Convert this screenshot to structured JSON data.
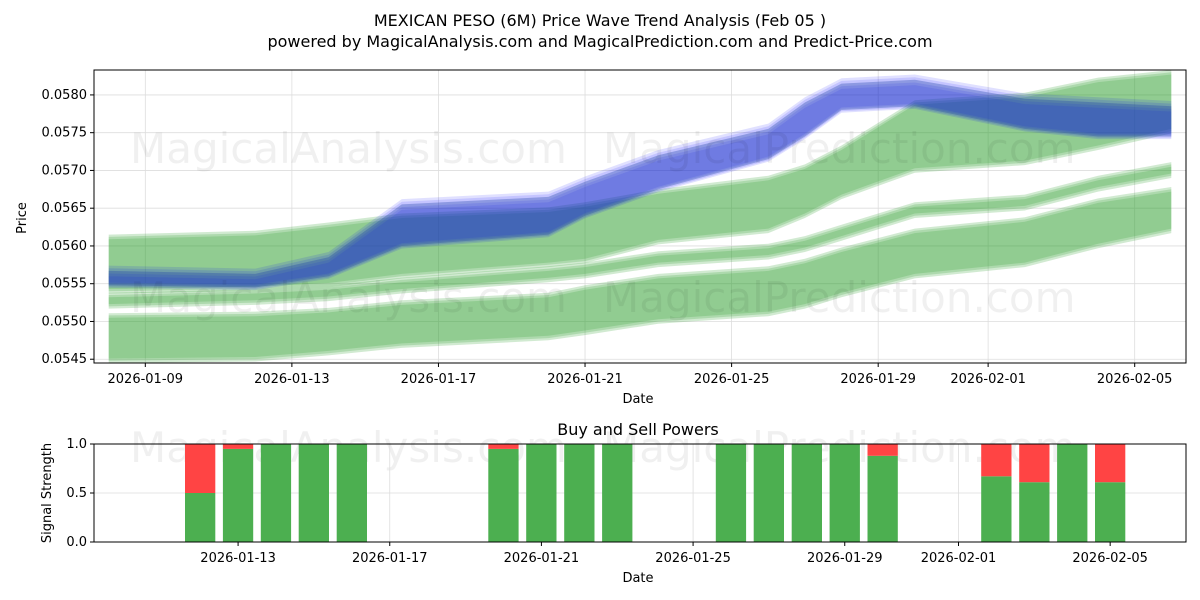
{
  "title_line1": "MEXICAN PESO (6M) Price Wave Trend Analysis (Feb 05 )",
  "title_line2": "powered by MagicalAnalysis.com and MagicalPrediction.com and Predict-Price.com",
  "watermarks": [
    "MagicalAnalysis.com",
    "MagicalPrediction.com"
  ],
  "colors": {
    "green_band": "#2ca02c",
    "blue_band": "#0000ff",
    "buy": "#4caf50",
    "sell": "#ff4444",
    "grid": "#dddddd"
  },
  "chart_data": [
    {
      "type": "area",
      "title": "",
      "xlabel": "Date",
      "ylabel": "Price",
      "xlim": [
        "2026-01-07.6",
        "2026-02-06.4"
      ],
      "ylim": [
        0.05445,
        0.05833
      ],
      "x_ticks": [
        "2026-01-09",
        "2026-01-13",
        "2026-01-17",
        "2026-01-21",
        "2026-01-25",
        "2026-01-29",
        "2026-02-01",
        "2026-02-05"
      ],
      "y_ticks": [
        "0.0545",
        "0.0550",
        "0.0555",
        "0.0560",
        "0.0565",
        "0.0570",
        "0.0575",
        "0.0580"
      ],
      "x": [
        "2026-01-08",
        "2026-01-12",
        "2026-01-14",
        "2026-01-16",
        "2026-01-20",
        "2026-01-21",
        "2026-01-23",
        "2026-01-26",
        "2026-01-27",
        "2026-01-28",
        "2026-01-30",
        "2026-02-02",
        "2026-02-04",
        "2026-02-06"
      ],
      "green_bands": [
        {
          "name": "upper band",
          "upper": [
            0.05612,
            0.05617,
            0.05628,
            0.0564,
            0.05648,
            0.05655,
            0.05672,
            0.0569,
            0.05705,
            0.0573,
            0.0579,
            0.058,
            0.0582,
            0.0583
          ],
          "lower": [
            0.0554,
            0.05543,
            0.05548,
            0.0556,
            0.05575,
            0.0558,
            0.05605,
            0.0562,
            0.0564,
            0.05665,
            0.057,
            0.0571,
            0.0573,
            0.05752
          ]
        },
        {
          "name": "mid band",
          "upper": [
            0.05535,
            0.0554,
            0.05545,
            0.05555,
            0.0557,
            0.05575,
            0.0559,
            0.056,
            0.0561,
            0.05625,
            0.05655,
            0.05665,
            0.0569,
            0.05708
          ]
        },
        {
          "name": "lower band",
          "upper": [
            0.05508,
            0.0551,
            0.05515,
            0.05525,
            0.05535,
            0.05545,
            0.0556,
            0.0557,
            0.0558,
            0.05595,
            0.0562,
            0.05635,
            0.0566,
            0.05675
          ],
          "lower": [
            0.05448,
            0.0545,
            0.05458,
            0.05468,
            0.05478,
            0.05485,
            0.055,
            0.0551,
            0.0552,
            0.05535,
            0.0556,
            0.05575,
            0.056,
            0.0562
          ]
        }
      ],
      "blue_band": {
        "name": "price wave",
        "upper": [
          0.05567,
          0.05563,
          0.05585,
          0.05655,
          0.05665,
          0.05685,
          0.0572,
          0.05755,
          0.0579,
          0.05815,
          0.0582,
          0.05795,
          0.0579,
          0.05785
        ],
        "lower": [
          0.05548,
          0.05545,
          0.0556,
          0.056,
          0.05615,
          0.0564,
          0.05675,
          0.05715,
          0.05745,
          0.0578,
          0.05785,
          0.05755,
          0.05745,
          0.05745
        ]
      }
    },
    {
      "type": "bar",
      "title": "Buy and Sell Powers",
      "xlabel": "Date",
      "ylabel": "Signal Strength",
      "ylim": [
        0,
        1
      ],
      "y_ticks": [
        "0.0",
        "0.5",
        "1.0"
      ],
      "x_ticks": [
        "2026-01-13",
        "2026-01-17",
        "2026-01-21",
        "2026-01-25",
        "2026-01-29",
        "2026-02-01",
        "2026-02-05"
      ],
      "dates": [
        "2026-01-12",
        "2026-01-13",
        "2026-01-14",
        "2026-01-15",
        "2026-01-16",
        "2026-01-20",
        "2026-01-21",
        "2026-01-22",
        "2026-01-23",
        "2026-01-26",
        "2026-01-27",
        "2026-01-28",
        "2026-01-29",
        "2026-01-30",
        "2026-02-02",
        "2026-02-03",
        "2026-02-04",
        "2026-02-05"
      ],
      "buy": [
        0.5,
        0.95,
        1.0,
        1.0,
        1.0,
        0.95,
        1.0,
        1.0,
        1.0,
        1.0,
        1.0,
        1.0,
        1.0,
        0.88,
        0.67,
        0.61,
        1.0,
        0.61
      ],
      "sell": [
        0.5,
        0.05,
        0.0,
        0.0,
        0.0,
        0.05,
        0.0,
        0.0,
        0.0,
        0.0,
        0.0,
        0.0,
        0.0,
        0.12,
        0.33,
        0.39,
        0.0,
        0.39
      ]
    }
  ]
}
